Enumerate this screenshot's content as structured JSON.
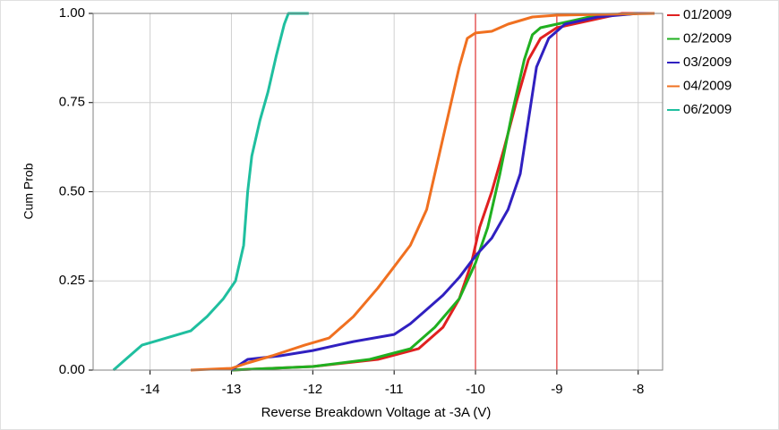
{
  "chart_data": {
    "type": "line",
    "xlabel": "Reverse Breakdown Voltage at -3A (V)",
    "ylabel": "Cum Prob",
    "xlim": [
      -14.7,
      -7.7
    ],
    "ylim": [
      0,
      1
    ],
    "xticks": [
      -14,
      -13,
      -12,
      -11,
      -10,
      -9,
      -8
    ],
    "yticks": [
      {
        "value": 0,
        "label": "0.00"
      },
      {
        "value": 0.25,
        "label": "0.25"
      },
      {
        "value": 0.5,
        "label": "0.50"
      },
      {
        "value": 0.75,
        "label": "0.75"
      },
      {
        "value": 1,
        "label": "1.00"
      }
    ],
    "grid": true,
    "legend": "right",
    "ref_lines": [
      -10,
      -9
    ],
    "ref_color": "#e03030",
    "series": [
      {
        "name": "01/2009",
        "color": "#e02020",
        "x": [
          -13,
          -12,
          -11.2,
          -10.7,
          -10.4,
          -10.2,
          -10.05,
          -9.95,
          -9.8,
          -9.65,
          -9.5,
          -9.35,
          -9.2,
          -9.0,
          -8.6,
          -8.2,
          -7.8
        ],
        "values": [
          0,
          0.01,
          0.03,
          0.06,
          0.12,
          0.2,
          0.3,
          0.4,
          0.5,
          0.62,
          0.75,
          0.87,
          0.93,
          0.96,
          0.98,
          1,
          1
        ]
      },
      {
        "name": "02/2009",
        "color": "#20b020",
        "x": [
          -13,
          -12,
          -11.3,
          -10.8,
          -10.5,
          -10.2,
          -10,
          -9.85,
          -9.7,
          -9.55,
          -9.4,
          -9.3,
          -9.2,
          -9,
          -8.6,
          -8,
          -7.8
        ],
        "values": [
          0,
          0.01,
          0.03,
          0.06,
          0.12,
          0.2,
          0.3,
          0.4,
          0.55,
          0.72,
          0.87,
          0.94,
          0.96,
          0.97,
          0.99,
          1,
          1
        ]
      },
      {
        "name": "03/2009",
        "color": "#3020c0",
        "x": [
          -13,
          -12.8,
          -12.4,
          -12,
          -11.5,
          -11,
          -10.8,
          -10.6,
          -10.4,
          -10.2,
          -10,
          -9.8,
          -9.6,
          -9.45,
          -9.35,
          -9.25,
          -9.1,
          -8.9,
          -8.5,
          -8,
          -7.8
        ],
        "values": [
          0,
          0.03,
          0.04,
          0.055,
          0.08,
          0.1,
          0.13,
          0.17,
          0.21,
          0.26,
          0.32,
          0.37,
          0.45,
          0.55,
          0.7,
          0.85,
          0.93,
          0.97,
          0.99,
          1,
          1
        ]
      },
      {
        "name": "04/2009",
        "color": "#f07020",
        "x": [
          -13.5,
          -13,
          -12.8,
          -12.5,
          -12.1,
          -11.8,
          -11.5,
          -11.2,
          -11,
          -10.8,
          -10.6,
          -10.5,
          -10.4,
          -10.3,
          -10.2,
          -10.1,
          -10,
          -9.8,
          -9.6,
          -9.3,
          -9,
          -7.8
        ],
        "values": [
          0,
          0.005,
          0.02,
          0.04,
          0.07,
          0.09,
          0.15,
          0.23,
          0.29,
          0.35,
          0.45,
          0.55,
          0.65,
          0.75,
          0.85,
          0.93,
          0.945,
          0.95,
          0.97,
          0.99,
          0.995,
          1
        ]
      },
      {
        "name": "06/2009",
        "color": "#1fbf9f",
        "x": [
          -14.45,
          -14.3,
          -14.1,
          -13.8,
          -13.5,
          -13.3,
          -13.1,
          -12.95,
          -12.85,
          -12.8,
          -12.75,
          -12.65,
          -12.55,
          -12.45,
          -12.35,
          -12.3,
          -12.05
        ],
        "values": [
          0,
          0.03,
          0.07,
          0.09,
          0.11,
          0.15,
          0.2,
          0.25,
          0.35,
          0.5,
          0.6,
          0.7,
          0.78,
          0.88,
          0.97,
          1,
          1
        ]
      }
    ]
  }
}
